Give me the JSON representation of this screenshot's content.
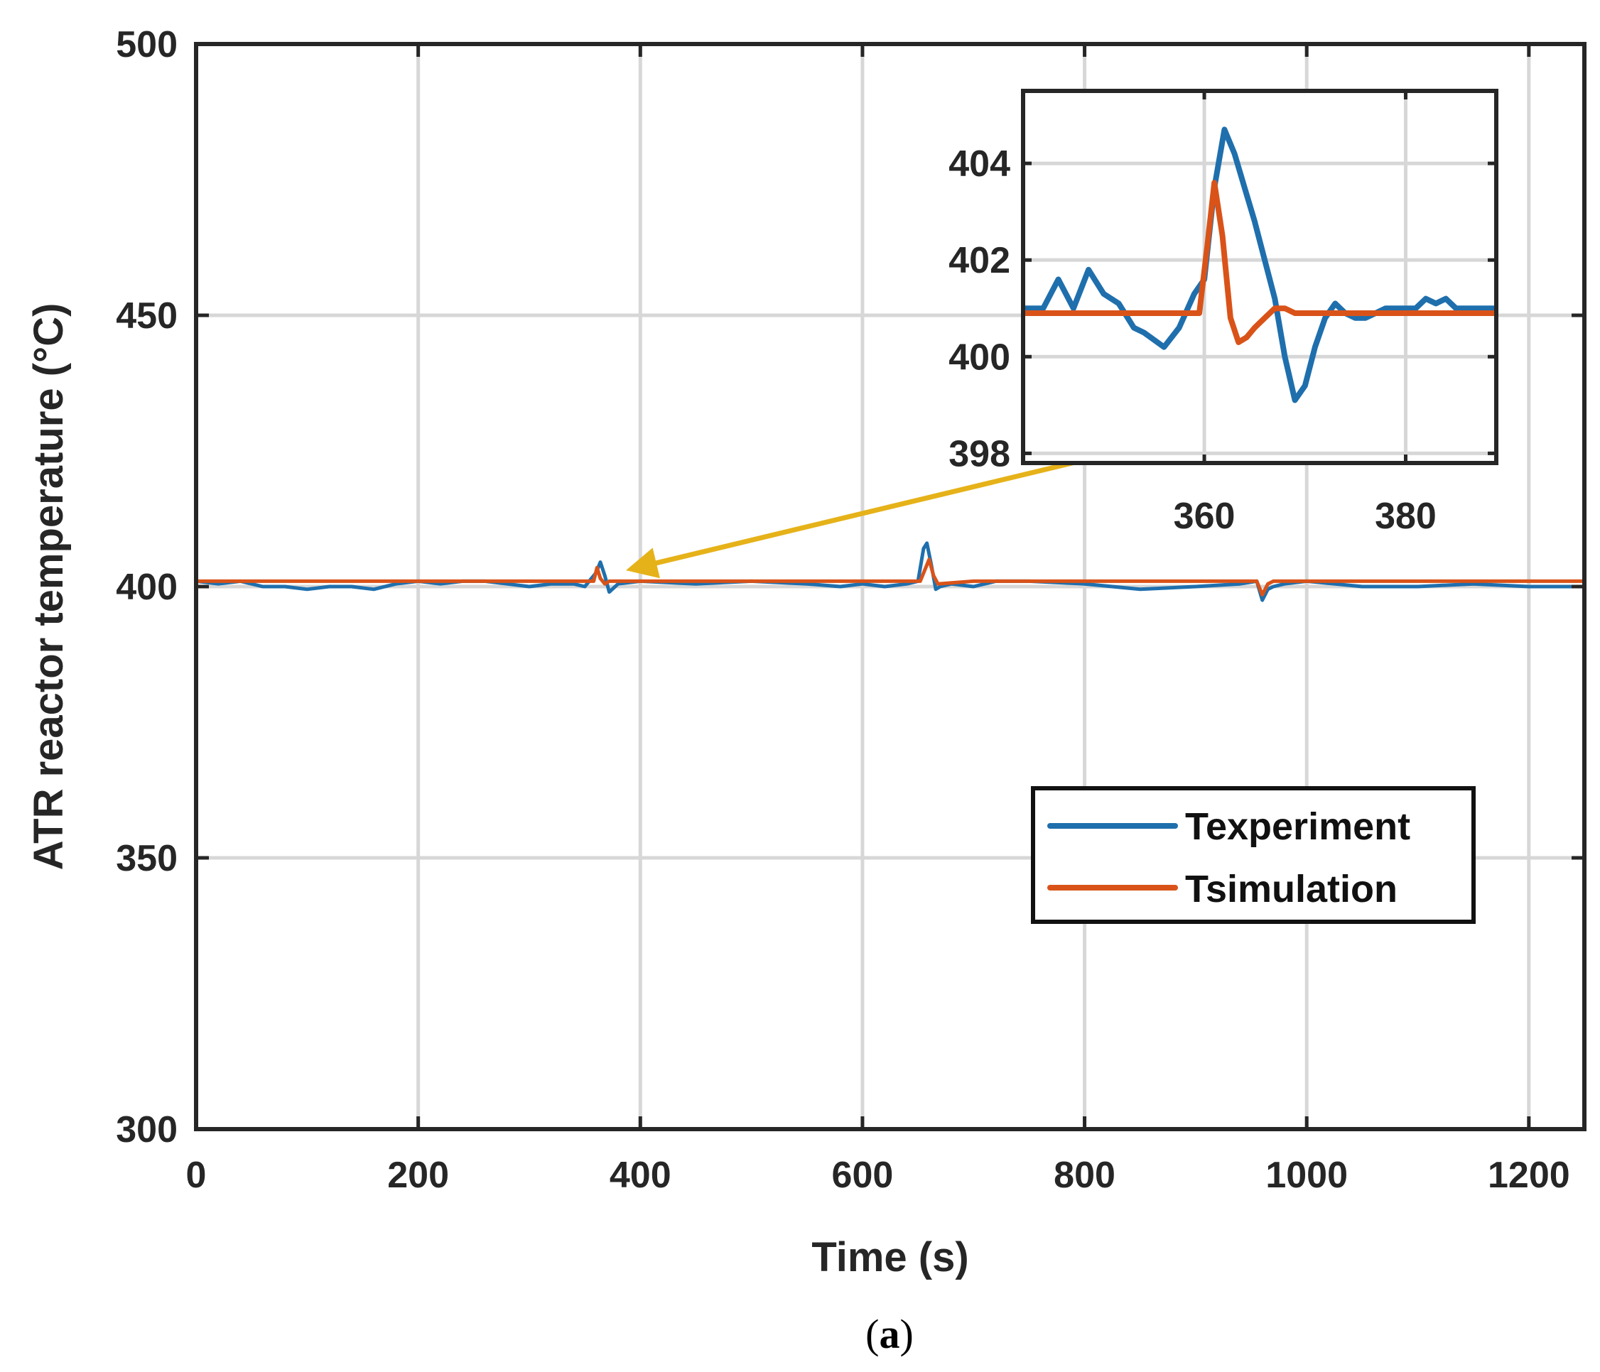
{
  "chart_data": [
    {
      "name": "main",
      "type": "line",
      "title": "",
      "xlabel": "Time (s)",
      "ylabel": "ATR reactor temperature (°C)",
      "xlim": [
        0,
        1250
      ],
      "ylim": [
        300,
        500
      ],
      "xticks": [
        0,
        200,
        400,
        600,
        800,
        1000,
        1200
      ],
      "yticks": [
        300,
        350,
        400,
        450,
        500
      ],
      "xtick_labels": [
        "0",
        "200",
        "400",
        "600",
        "800",
        "1000",
        "1200"
      ],
      "ytick_labels": [
        "300",
        "350",
        "400",
        "450",
        "500"
      ],
      "grid": true,
      "legend": "right-middle",
      "series": [
        {
          "name": "Texperiment",
          "color": "#1f6fad",
          "x": [
            0,
            20,
            40,
            60,
            80,
            100,
            120,
            140,
            160,
            180,
            200,
            220,
            240,
            260,
            280,
            300,
            320,
            340,
            350,
            356,
            360,
            364,
            368,
            372,
            380,
            400,
            450,
            500,
            550,
            580,
            600,
            620,
            640,
            650,
            655,
            658,
            662,
            666,
            670,
            680,
            700,
            720,
            750,
            800,
            850,
            900,
            940,
            955,
            960,
            965,
            970,
            980,
            1000,
            1050,
            1100,
            1150,
            1200,
            1250
          ],
          "values": [
            401,
            400.5,
            401,
            400,
            400,
            399.5,
            400,
            400,
            399.5,
            400.5,
            401,
            400.5,
            401,
            401,
            400.5,
            400,
            400.5,
            400.5,
            400,
            401.5,
            402.5,
            404.5,
            402,
            399,
            400.5,
            401,
            400.5,
            401,
            400.5,
            400,
            400.5,
            400,
            400.5,
            401,
            407,
            408,
            404,
            399.5,
            400,
            400.5,
            400,
            401,
            401,
            400.5,
            399.5,
            400,
            400.5,
            401,
            397.5,
            399.5,
            400,
            400.5,
            401,
            400,
            400,
            400.5,
            400,
            400
          ]
        },
        {
          "name": "Tsimulation",
          "color": "#d95319",
          "x": [
            0,
            50,
            100,
            150,
            200,
            250,
            300,
            350,
            358,
            361,
            364,
            368,
            372,
            380,
            400,
            500,
            600,
            640,
            652,
            656,
            660,
            664,
            668,
            700,
            800,
            900,
            940,
            955,
            960,
            965,
            970,
            980,
            1000,
            1100,
            1200,
            1250
          ],
          "values": [
            401,
            401,
            401,
            401,
            401,
            401,
            401,
            401,
            401,
            403.5,
            401.5,
            400.5,
            401,
            401,
            401,
            401,
            401,
            401,
            401,
            403,
            405,
            402,
            400.5,
            401,
            401,
            401,
            401,
            401,
            398.5,
            400.5,
            401,
            401,
            401,
            401,
            401,
            401
          ]
        }
      ],
      "annotation": {
        "type": "arrow",
        "color": "#e6b219",
        "from": [
          895,
          428
        ],
        "to": [
          387,
          403
        ]
      }
    },
    {
      "name": "inset",
      "type": "line",
      "title": "",
      "xlabel": "",
      "ylabel": "",
      "xlim": [
        342,
        389
      ],
      "ylim": [
        397.8,
        405.5
      ],
      "xticks": [
        360,
        380
      ],
      "yticks": [
        398,
        400,
        402,
        404
      ],
      "xtick_labels": [
        "360",
        "380"
      ],
      "ytick_labels": [
        "398",
        "400",
        "402",
        "404"
      ],
      "grid": true,
      "series": [
        {
          "name": "Texperiment",
          "color": "#1f6fad",
          "x": [
            342,
            344,
            345.5,
            347,
            348.5,
            350,
            351.5,
            353,
            354,
            356,
            357.5,
            359,
            360,
            361,
            362,
            363,
            364,
            365,
            366,
            367,
            368,
            369,
            370,
            371,
            372,
            373,
            374,
            375,
            376,
            377,
            378,
            379,
            380,
            381,
            382,
            383,
            384,
            385,
            386,
            387,
            388,
            389
          ],
          "values": [
            401,
            401,
            401.6,
            401,
            401.8,
            401.3,
            401.1,
            400.6,
            400.5,
            400.2,
            400.6,
            401.3,
            401.6,
            403.5,
            404.7,
            404.2,
            403.5,
            402.8,
            402,
            401.2,
            400,
            399.1,
            399.4,
            400.2,
            400.8,
            401.1,
            400.9,
            400.8,
            400.8,
            400.9,
            401,
            401,
            401,
            401,
            401.2,
            401.1,
            401.2,
            401,
            401,
            401,
            401,
            401
          ]
        },
        {
          "name": "Tsimulation",
          "color": "#d95319",
          "x": [
            342,
            350,
            358,
            359.5,
            360.3,
            361,
            361.8,
            362.6,
            363.4,
            364.2,
            365,
            366,
            367,
            368,
            369,
            370,
            372,
            375,
            380,
            385,
            389
          ],
          "values": [
            400.9,
            400.9,
            400.9,
            400.9,
            402.3,
            403.6,
            402.5,
            400.8,
            400.3,
            400.4,
            400.6,
            400.8,
            401,
            401,
            400.9,
            400.9,
            400.9,
            400.9,
            400.9,
            400.9,
            400.9
          ]
        }
      ]
    }
  ],
  "caption": {
    "open": "(",
    "letter": "a",
    "close": ")"
  }
}
